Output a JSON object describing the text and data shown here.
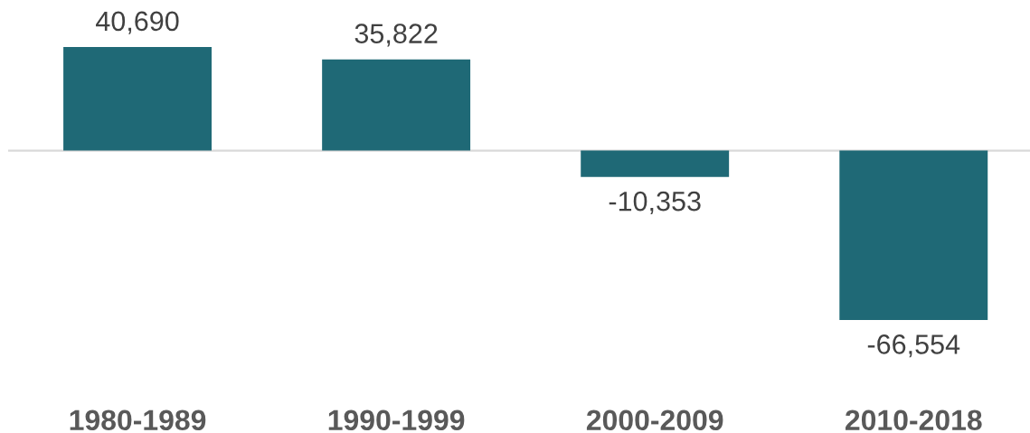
{
  "chart_data": {
    "type": "bar",
    "categories": [
      "1980-1989",
      "1990-1999",
      "2000-2009",
      "2010-2018"
    ],
    "values": [
      40690,
      35822,
      -10353,
      -66554
    ],
    "color": "#1f6976",
    "value_labels": [
      "40,690",
      "35,822",
      "-10,353",
      "-66,554"
    ]
  }
}
